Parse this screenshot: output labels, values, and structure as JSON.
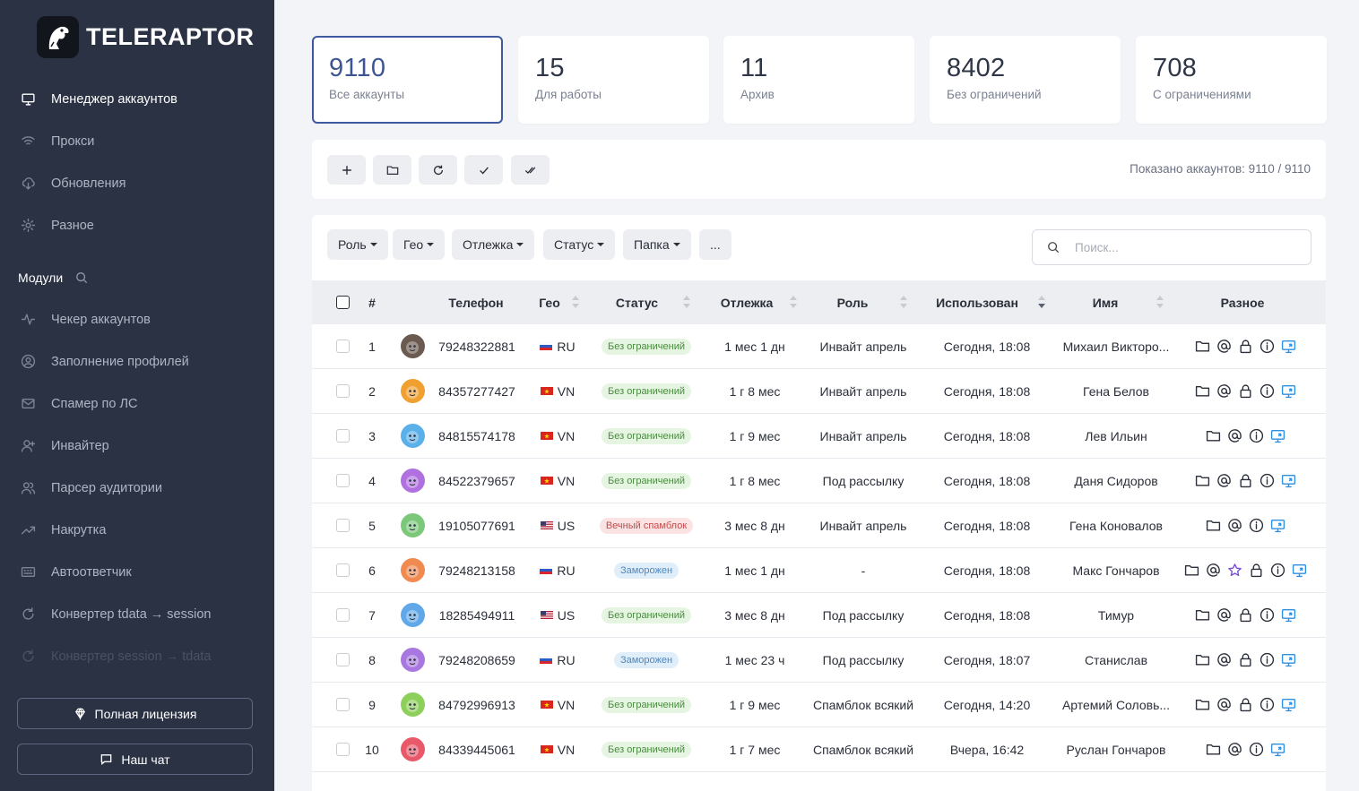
{
  "brand": {
    "name": "TELERAPTOR"
  },
  "nav": {
    "items": [
      {
        "label": "Менеджер аккаунтов",
        "icon": "monitor-icon",
        "active": true
      },
      {
        "label": "Прокси",
        "icon": "wifi-icon"
      },
      {
        "label": "Обновления",
        "icon": "cloud-download-icon"
      },
      {
        "label": "Разное",
        "icon": "gear-icon"
      }
    ],
    "modules_label": "Модули",
    "module_items": [
      {
        "label": "Чекер аккаунтов",
        "icon": "activity-icon"
      },
      {
        "label": "Заполнение профилей",
        "icon": "user-circle-icon"
      },
      {
        "label": "Спамер по ЛС",
        "icon": "mail-icon"
      },
      {
        "label": "Инвайтер",
        "icon": "user-plus-icon"
      },
      {
        "label": "Парсер аудитории",
        "icon": "users-icon"
      },
      {
        "label": "Накрутка",
        "icon": "trending-up-icon"
      },
      {
        "label": "Автоответчик",
        "icon": "keyboard-icon"
      },
      {
        "label": "Конвертер tdata → session",
        "icon": "refresh-icon"
      },
      {
        "label": "Конвертер session → tdata",
        "icon": "refresh-icon",
        "disabled": true
      }
    ],
    "license_label": "Полная лицензия",
    "chat_label": "Наш чат"
  },
  "stats": [
    {
      "value": "9110",
      "label": "Все аккаунты",
      "selected": true
    },
    {
      "value": "15",
      "label": "Для работы"
    },
    {
      "value": "11",
      "label": "Архив"
    },
    {
      "value": "8402",
      "label": "Без ограничений"
    },
    {
      "value": "708",
      "label": "С ограничениями"
    }
  ],
  "toolbar": {
    "buttons": [
      "plus-icon",
      "folder-icon",
      "refresh-icon",
      "check-icon",
      "check-double-icon"
    ],
    "shown_text": "Показано аккаунтов: 9110 / 9110"
  },
  "filters": {
    "items": [
      "Роль",
      "Гео",
      "Отлежка",
      "Статус",
      "Папка"
    ],
    "more": "...",
    "search_placeholder": "Поиск..."
  },
  "table": {
    "columns": {
      "num": "#",
      "phone": "Телефон",
      "geo": "Гео",
      "status": "Статус",
      "age": "Отлежка",
      "role": "Роль",
      "used": "Использован",
      "name": "Имя",
      "misc": "Разное"
    },
    "rows": [
      {
        "n": "1",
        "phone": "79248322881",
        "geo": "RU",
        "status": "Без ограничений",
        "kind": "ok",
        "age": "1 мес 1 дн",
        "role": "Инвайт апрель",
        "used": "Сегодня, 18:08",
        "name": "Михаил Викторо...",
        "avatar_color": "#6b5a4f",
        "icons": [
          "folder-icon",
          "at-icon",
          "lock-icon",
          "info-icon",
          "desktop-icon"
        ]
      },
      {
        "n": "2",
        "phone": "84357277427",
        "geo": "VN",
        "status": "Без ограничений",
        "kind": "ok",
        "age": "1 г 8 мес",
        "role": "Инвайт апрель",
        "used": "Сегодня, 18:08",
        "name": "Гена Белов",
        "avatar_color": "#f0a030",
        "icons": [
          "folder-icon",
          "at-icon",
          "lock-icon",
          "info-icon",
          "desktop-icon"
        ]
      },
      {
        "n": "3",
        "phone": "84815574178",
        "geo": "VN",
        "status": "Без ограничений",
        "kind": "ok",
        "age": "1 г 9 мес",
        "role": "Инвайт апрель",
        "used": "Сегодня, 18:08",
        "name": "Лев Ильин",
        "avatar_color": "#5ab0e8",
        "icons": [
          "folder-icon",
          "at-icon",
          "info-icon",
          "desktop-icon"
        ]
      },
      {
        "n": "4",
        "phone": "84522379657",
        "geo": "VN",
        "status": "Без ограничений",
        "kind": "ok",
        "age": "1 г 8 мес",
        "role": "Под рассылку",
        "used": "Сегодня, 18:08",
        "name": "Даня Сидоров",
        "avatar_color": "#b070e0",
        "icons": [
          "folder-icon",
          "at-icon",
          "lock-icon",
          "info-icon",
          "desktop-icon"
        ]
      },
      {
        "n": "5",
        "phone": "19105077691",
        "geo": "US",
        "status": "Вечный спамблок",
        "kind": "ban",
        "age": "3 мес 8 дн",
        "role": "Инвайт апрель",
        "used": "Сегодня, 18:08",
        "name": "Гена Коновалов",
        "avatar_color": "#7cc87a",
        "icons": [
          "folder-icon",
          "at-icon",
          "info-icon",
          "desktop-icon"
        ]
      },
      {
        "n": "6",
        "phone": "79248213158",
        "geo": "RU",
        "status": "Заморожен",
        "kind": "frozen",
        "age": "1 мес 1 дн",
        "role": "-",
        "used": "Сегодня, 18:08",
        "name": "Макс Гончаров",
        "avatar_color": "#f08a50",
        "icons": [
          "folder-icon",
          "at-icon",
          "star-icon",
          "lock-icon",
          "info-icon",
          "desktop-icon"
        ]
      },
      {
        "n": "7",
        "phone": "18285494911",
        "geo": "US",
        "status": "Без ограничений",
        "kind": "ok",
        "age": "3 мес 8 дн",
        "role": "Под рассылку",
        "used": "Сегодня, 18:08",
        "name": "Тимур",
        "avatar_color": "#60a8e8",
        "icons": [
          "folder-icon",
          "at-icon",
          "lock-icon",
          "info-icon",
          "desktop-icon"
        ]
      },
      {
        "n": "8",
        "phone": "79248208659",
        "geo": "RU",
        "status": "Заморожен",
        "kind": "frozen",
        "age": "1 мес 23 ч",
        "role": "Под рассылку",
        "used": "Сегодня, 18:07",
        "name": "Станислав",
        "avatar_color": "#a878e0",
        "icons": [
          "folder-icon",
          "at-icon",
          "lock-icon",
          "info-icon",
          "desktop-icon"
        ]
      },
      {
        "n": "9",
        "phone": "84792996913",
        "geo": "VN",
        "status": "Без ограничений",
        "kind": "ok",
        "age": "1 г 9 мес",
        "role": "Спамблок всякий",
        "used": "Сегодня, 14:20",
        "name": "Артемий Соловь...",
        "avatar_color": "#8ccf5a",
        "icons": [
          "folder-icon",
          "at-icon",
          "lock-icon",
          "info-icon",
          "desktop-icon"
        ]
      },
      {
        "n": "10",
        "phone": "84339445061",
        "geo": "VN",
        "status": "Без ограничений",
        "kind": "ok",
        "age": "1 г 7 мес",
        "role": "Спамблок всякий",
        "used": "Вчера, 16:42",
        "name": "Руслан Гончаров",
        "avatar_color": "#e85a6a",
        "icons": [
          "folder-icon",
          "at-icon",
          "info-icon",
          "desktop-icon"
        ]
      }
    ]
  },
  "colors": {
    "sidebar": "#2b3243",
    "accent": "#3f5a9e",
    "ok": "#4c8a43",
    "ban": "#c24c4c",
    "frozen": "#4d88bf",
    "desktop_icon": "#2f8fe0"
  }
}
